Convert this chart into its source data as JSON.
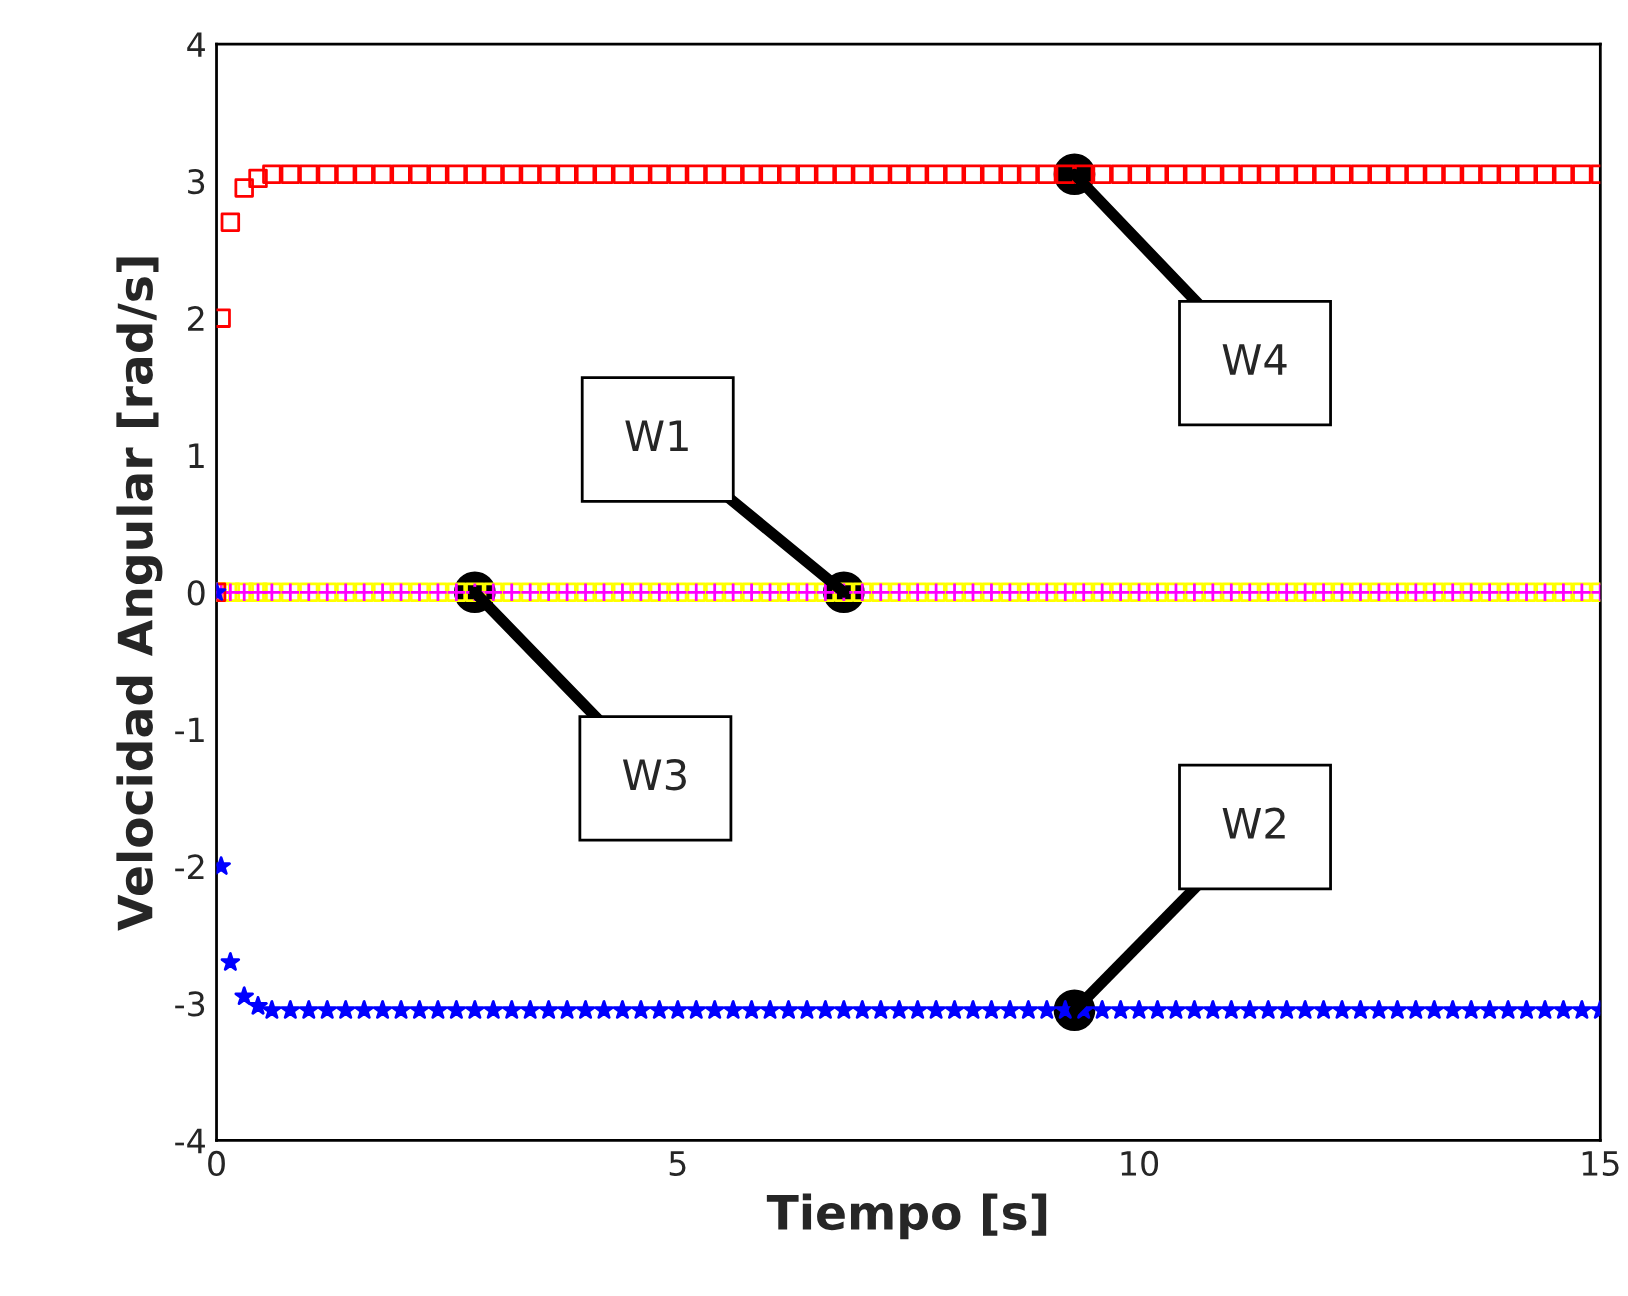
{
  "chart_data": {
    "type": "scatter",
    "xlabel": "Tiempo [s]",
    "ylabel": "Velocidad Angular [rad/s]",
    "x": [
      0,
      0.05,
      0.15,
      0.3,
      0.45,
      0.6,
      0.8,
      1,
      1.2,
      1.4,
      1.6,
      1.8,
      2,
      2.2,
      2.4,
      2.6,
      2.8,
      3,
      3.2,
      3.4,
      3.6,
      3.8,
      4,
      4.2,
      4.4,
      4.6,
      4.8,
      5,
      5.2,
      5.4,
      5.6,
      5.8,
      6,
      6.2,
      6.4,
      6.6,
      6.8,
      7,
      7.2,
      7.4,
      7.6,
      7.8,
      8,
      8.2,
      8.4,
      8.6,
      8.8,
      9,
      9.2,
      9.4,
      9.6,
      9.8,
      10,
      10.2,
      10.4,
      10.6,
      10.8,
      11,
      11.2,
      11.4,
      11.6,
      11.8,
      12,
      12.2,
      12.4,
      12.6,
      12.8,
      13,
      13.2,
      13.4,
      13.6,
      13.8,
      14,
      14.2,
      14.4,
      14.6,
      14.8,
      15
    ],
    "series": [
      {
        "color": "#ffff00",
        "marker": "square",
        "values": [
          0,
          0,
          0,
          0,
          0,
          0,
          0,
          0,
          0,
          0,
          0,
          0,
          0,
          0,
          0,
          0,
          0,
          0,
          0,
          0,
          0,
          0,
          0,
          0,
          0,
          0,
          0,
          0,
          0,
          0,
          0,
          0,
          0,
          0,
          0,
          0,
          0,
          0,
          0,
          0,
          0,
          0,
          0,
          0,
          0,
          0,
          0,
          0,
          0,
          0,
          0,
          0,
          0,
          0,
          0,
          0,
          0,
          0,
          0,
          0,
          0,
          0,
          0,
          0,
          0,
          0,
          0,
          0,
          0,
          0,
          0,
          0,
          0,
          0,
          0,
          0,
          0,
          0
        ]
      },
      {
        "color": "#ff00ff",
        "marker": "cross",
        "values": [
          0,
          0,
          0,
          0,
          0,
          0,
          0,
          0,
          0,
          0,
          0,
          0,
          0,
          0,
          0,
          0,
          0,
          0,
          0,
          0,
          0,
          0,
          0,
          0,
          0,
          0,
          0,
          0,
          0,
          0,
          0,
          0,
          0,
          0,
          0,
          0,
          0,
          0,
          0,
          0,
          0,
          0,
          0,
          0,
          0,
          0,
          0,
          0,
          0,
          0,
          0,
          0,
          0,
          0,
          0,
          0,
          0,
          0,
          0,
          0,
          0,
          0,
          0,
          0,
          0,
          0,
          0,
          0,
          0,
          0,
          0,
          0,
          0,
          0,
          0,
          0,
          0,
          0
        ]
      },
      {
        "color": "#ff0000",
        "marker": "square",
        "values": [
          0,
          2.0,
          2.7,
          2.95,
          3.02,
          3.05,
          3.05,
          3.05,
          3.05,
          3.05,
          3.05,
          3.05,
          3.05,
          3.05,
          3.05,
          3.05,
          3.05,
          3.05,
          3.05,
          3.05,
          3.05,
          3.05,
          3.05,
          3.05,
          3.05,
          3.05,
          3.05,
          3.05,
          3.05,
          3.05,
          3.05,
          3.05,
          3.05,
          3.05,
          3.05,
          3.05,
          3.05,
          3.05,
          3.05,
          3.05,
          3.05,
          3.05,
          3.05,
          3.05,
          3.05,
          3.05,
          3.05,
          3.05,
          3.05,
          3.05,
          3.05,
          3.05,
          3.05,
          3.05,
          3.05,
          3.05,
          3.05,
          3.05,
          3.05,
          3.05,
          3.05,
          3.05,
          3.05,
          3.05,
          3.05,
          3.05,
          3.05,
          3.05,
          3.05,
          3.05,
          3.05,
          3.05,
          3.05,
          3.05,
          3.05,
          3.05,
          3.05,
          3.05
        ]
      },
      {
        "color": "#0000ff",
        "marker": "star",
        "values": [
          0,
          -2.0,
          -2.7,
          -2.95,
          -3.02,
          -3.05,
          -3.05,
          -3.05,
          -3.05,
          -3.05,
          -3.05,
          -3.05,
          -3.05,
          -3.05,
          -3.05,
          -3.05,
          -3.05,
          -3.05,
          -3.05,
          -3.05,
          -3.05,
          -3.05,
          -3.05,
          -3.05,
          -3.05,
          -3.05,
          -3.05,
          -3.05,
          -3.05,
          -3.05,
          -3.05,
          -3.05,
          -3.05,
          -3.05,
          -3.05,
          -3.05,
          -3.05,
          -3.05,
          -3.05,
          -3.05,
          -3.05,
          -3.05,
          -3.05,
          -3.05,
          -3.05,
          -3.05,
          -3.05,
          -3.05,
          -3.05,
          -3.05,
          -3.05,
          -3.05,
          -3.05,
          -3.05,
          -3.05,
          -3.05,
          -3.05,
          -3.05,
          -3.05,
          -3.05,
          -3.05,
          -3.05,
          -3.05,
          -3.05,
          -3.05,
          -3.05,
          -3.05,
          -3.05,
          -3.05,
          -3.05,
          -3.05,
          -3.05,
          -3.05,
          -3.05,
          -3.05,
          -3.05,
          -3.05,
          -3.05
        ]
      }
    ],
    "annotations": [
      {
        "text": "W1",
        "x": 6.8,
        "y": 0
      },
      {
        "text": "W2",
        "x": 9.3,
        "y": -3.05
      },
      {
        "text": "W3",
        "x": 2.8,
        "y": 0
      },
      {
        "text": "W4",
        "x": 9.3,
        "y": 3.05
      }
    ],
    "xlim": [
      0,
      15
    ],
    "xticks": [
      0,
      5,
      10,
      15
    ],
    "ylim": [
      -4,
      4
    ],
    "yticks": [
      -4,
      -3,
      -2,
      -1,
      0,
      1,
      2,
      3,
      4
    ],
    "grid": false,
    "legend": false
  }
}
